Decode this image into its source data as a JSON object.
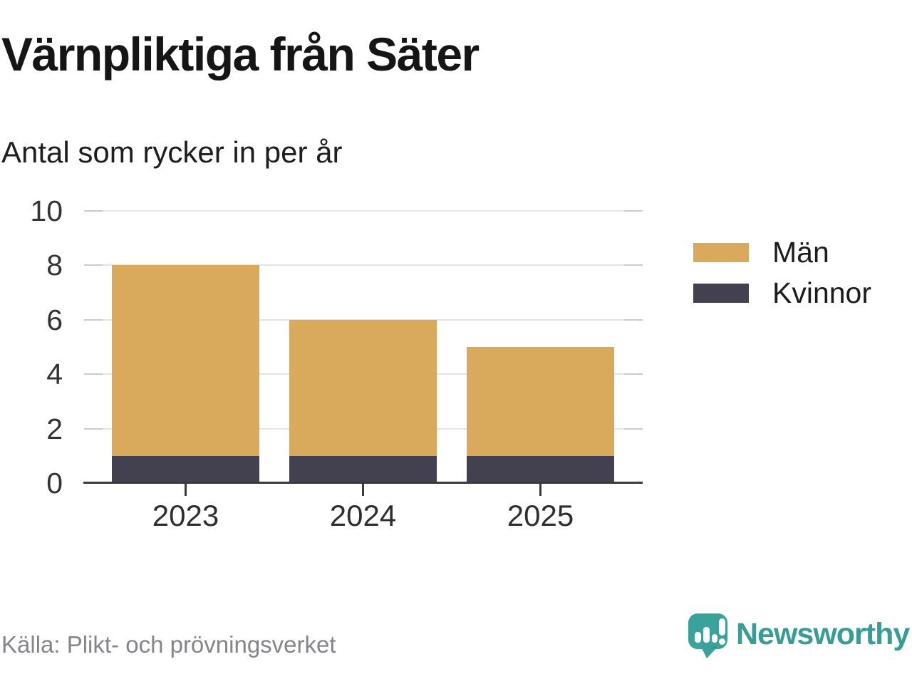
{
  "chart_data": {
    "type": "bar",
    "stacked": true,
    "title": "Värnpliktiga från Säter",
    "subtitle": "Antal som rycker in per år",
    "categories": [
      "2023",
      "2024",
      "2025"
    ],
    "series": [
      {
        "name": "Män",
        "color": "#d9a95c",
        "values": [
          7,
          5,
          4
        ]
      },
      {
        "name": "Kvinnor",
        "color": "#434150",
        "values": [
          1,
          1,
          1
        ]
      }
    ],
    "totals": [
      8,
      6,
      5
    ],
    "xlabel": "",
    "ylabel": "",
    "ylim": [
      0,
      10
    ],
    "yticks": [
      0,
      2,
      4,
      6,
      8,
      10
    ],
    "grid": true,
    "legend_position": "right"
  },
  "footer": {
    "source": "Källa: Plikt- och prövningsverket",
    "brand": "Newsworthy"
  },
  "colors": {
    "men": "#d9a95c",
    "women": "#434150",
    "brand_teal": "#3ba19b",
    "brand_text": "#399c96",
    "gridline": "#e4e4e4",
    "axis": "#3a3a3a"
  }
}
